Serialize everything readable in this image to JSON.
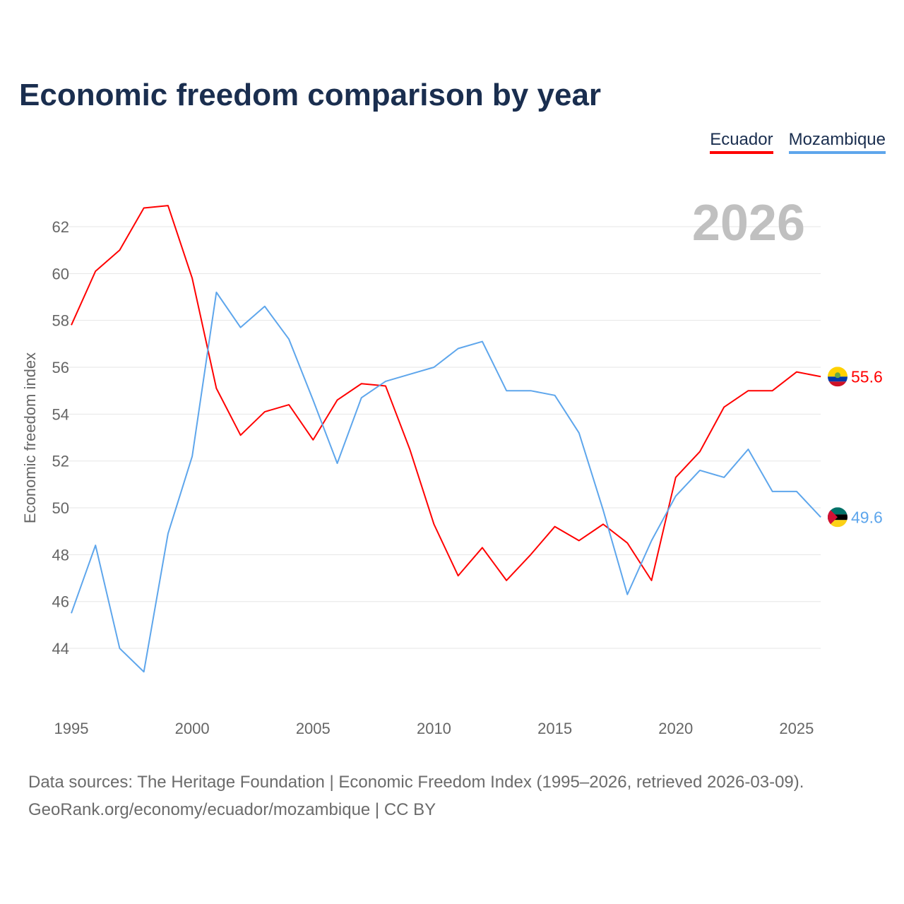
{
  "chart_data": {
    "type": "line",
    "title": "Economic freedom comparison by year",
    "ylabel": "Economic freedom index",
    "xlabel": "",
    "year_label": "2026",
    "x": [
      1995,
      1996,
      1997,
      1998,
      1999,
      2000,
      2001,
      2002,
      2003,
      2004,
      2005,
      2006,
      2007,
      2008,
      2009,
      2010,
      2011,
      2012,
      2013,
      2014,
      2015,
      2016,
      2017,
      2018,
      2019,
      2020,
      2021,
      2022,
      2023,
      2024,
      2025,
      2026
    ],
    "xticks": [
      "1995",
      "2000",
      "2005",
      "2010",
      "2015",
      "2020",
      "2025"
    ],
    "yticks": [
      "44",
      "46",
      "48",
      "50",
      "52",
      "54",
      "56",
      "58",
      "60",
      "62"
    ],
    "ylim": [
      42,
      63
    ],
    "grid": true,
    "legend_placement": "top-right",
    "series": [
      {
        "name": "Ecuador",
        "color": "#ff0000",
        "end_label": "55.6",
        "values": [
          57.8,
          60.1,
          61.0,
          62.8,
          62.9,
          59.8,
          55.1,
          53.1,
          54.1,
          54.4,
          52.9,
          54.6,
          55.3,
          55.2,
          52.5,
          49.3,
          47.1,
          48.3,
          46.9,
          48.0,
          49.2,
          48.6,
          49.3,
          48.5,
          46.9,
          51.3,
          52.4,
          54.3,
          55.0,
          55.0,
          55.8,
          55.6
        ]
      },
      {
        "name": "Mozambique",
        "color": "#5ea6ec",
        "end_label": "49.6",
        "values": [
          45.5,
          48.4,
          44.0,
          43.0,
          48.9,
          52.2,
          59.2,
          57.7,
          58.6,
          57.2,
          54.6,
          51.9,
          54.7,
          55.4,
          55.7,
          56.0,
          56.8,
          57.1,
          55.0,
          55.0,
          54.8,
          53.2,
          49.9,
          46.3,
          48.6,
          50.5,
          51.6,
          51.3,
          52.5,
          50.7,
          50.7,
          49.6
        ]
      }
    ]
  },
  "source": {
    "line1": "Data sources: The Heritage Foundation | Economic Freedom Index (1995–2026, retrieved 2026-03-09).",
    "line2": "GeoRank.org/economy/ecuador/mozambique | CC BY"
  }
}
